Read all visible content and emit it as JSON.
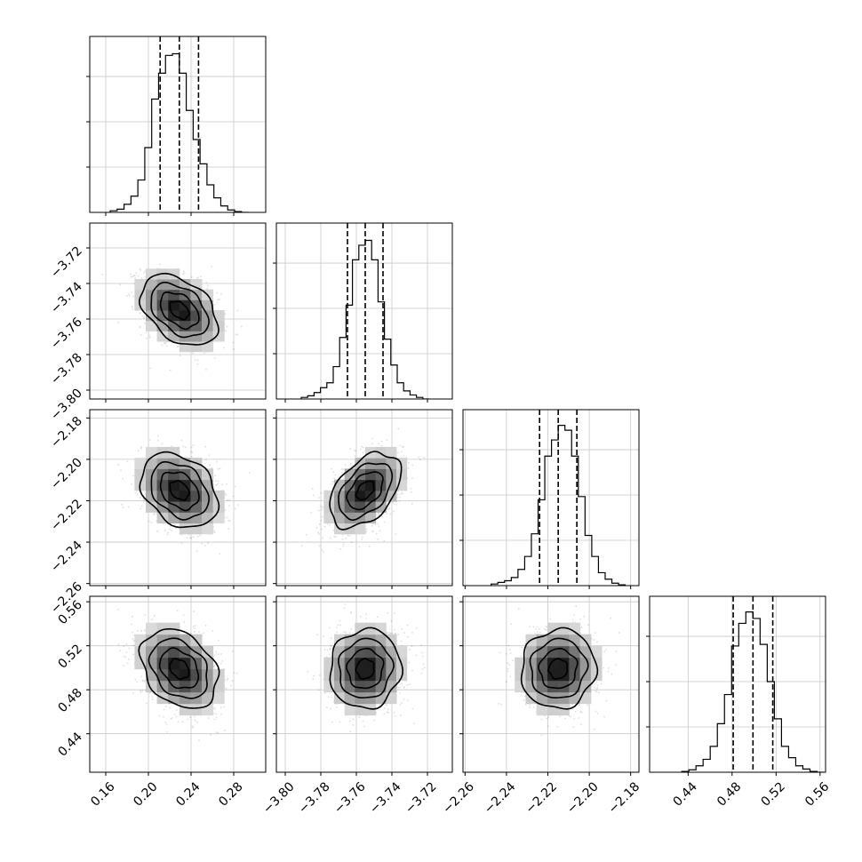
{
  "chart_data": {
    "type": "corner",
    "title": "",
    "parameters": [
      {
        "range": [
          0.145,
          0.31
        ],
        "xticks": [
          "0.16",
          "0.20",
          "0.24",
          "0.28"
        ],
        "yticks": [],
        "quantiles": [
          0.211,
          0.229,
          0.247
        ],
        "centre": 0.229,
        "sigma": 0.018
      },
      {
        "range": [
          -3.805,
          -3.706
        ],
        "xticks": [
          "−3.80",
          "−3.78",
          "−3.76",
          "−3.74",
          "−3.72"
        ],
        "yticks": [
          "−3.72",
          "−3.74",
          "−3.76",
          "−3.78",
          "−3.80"
        ],
        "quantiles": [
          -3.765,
          -3.755,
          -3.745
        ],
        "centre": -3.755,
        "sigma": 0.01
      },
      {
        "range": [
          -2.261,
          -2.176
        ],
        "xticks": [
          "−2.26",
          "−2.24",
          "−2.22",
          "−2.20",
          "−2.18"
        ],
        "yticks": [
          "−2.18",
          "−2.20",
          "−2.22",
          "−2.24",
          "−2.26"
        ],
        "quantiles": [
          -2.224,
          -2.215,
          -2.206
        ],
        "centre": -2.215,
        "sigma": 0.009
      },
      {
        "range": [
          0.405,
          0.565
        ],
        "xticks": [
          "0.44",
          "0.48",
          "0.52",
          "0.56"
        ],
        "yticks": [
          "0.44",
          "0.48",
          "0.52",
          "0.56"
        ],
        "quantiles": [
          0.481,
          0.499,
          0.517
        ],
        "centre": 0.499,
        "sigma": 0.018
      }
    ],
    "correlations": [
      {
        "x": 0,
        "y": 1,
        "rho": -0.4
      },
      {
        "x": 0,
        "y": 2,
        "rho": -0.3
      },
      {
        "x": 1,
        "y": 2,
        "rho": 0.45
      },
      {
        "x": 0,
        "y": 3,
        "rho": -0.3
      },
      {
        "x": 1,
        "y": 3,
        "rho": 0.05
      },
      {
        "x": 2,
        "y": 3,
        "rho": 0.05
      }
    ],
    "histograms": [
      [
        0.01,
        0.02,
        0.05,
        0.1,
        0.2,
        0.4,
        0.7,
        0.86,
        0.97,
        0.98,
        0.86,
        0.63,
        0.45,
        0.3,
        0.17,
        0.09,
        0.04,
        0.015,
        0.005,
        0.0
      ],
      [
        0.01,
        0.02,
        0.04,
        0.07,
        0.1,
        0.2,
        0.38,
        0.58,
        0.86,
        0.95,
        0.98,
        0.86,
        0.6,
        0.37,
        0.21,
        0.1,
        0.05,
        0.025,
        0.01,
        0.0
      ],
      [
        0.01,
        0.02,
        0.03,
        0.05,
        0.1,
        0.18,
        0.32,
        0.53,
        0.8,
        0.9,
        0.99,
        0.96,
        0.8,
        0.55,
        0.31,
        0.18,
        0.08,
        0.04,
        0.015,
        0.005
      ],
      [
        0.005,
        0.015,
        0.04,
        0.08,
        0.16,
        0.3,
        0.48,
        0.78,
        0.92,
        0.99,
        0.95,
        0.79,
        0.56,
        0.33,
        0.16,
        0.09,
        0.04,
        0.02,
        0.005,
        0.0
      ]
    ],
    "grid": true,
    "legend": "none"
  }
}
